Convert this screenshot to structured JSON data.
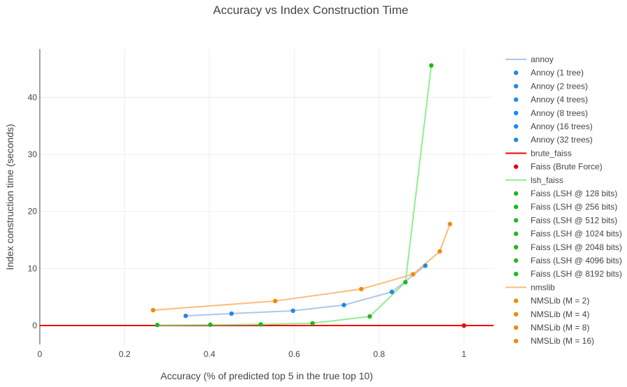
{
  "chart_data": {
    "type": "scatter",
    "title": "Accuracy vs Index Construction Time",
    "xlabel": "Accuracy (% of predicted top 5 in the true top 10)",
    "ylabel": "Index construction time (seconds)",
    "xlim": [
      0,
      1.07
    ],
    "ylim": [
      -3.3,
      48.5
    ],
    "x_ticks": [
      0,
      0.2,
      0.4,
      0.6,
      0.8,
      1
    ],
    "x_tick_labels": [
      "0",
      "0.2",
      "0.4",
      "0.6",
      "0.8",
      "1"
    ],
    "y_ticks": [
      0,
      10,
      20,
      30,
      40
    ],
    "y_tick_labels": [
      "0",
      "10",
      "20",
      "30",
      "40"
    ],
    "grid": true,
    "legend_position": "right",
    "groups": [
      {
        "line_name": "annoy",
        "line_color": "#aec7e8",
        "marker_color": "#1f88e8",
        "points": [
          {
            "name": "Annoy (1 tree)",
            "x": 0.344,
            "y": 1.7
          },
          {
            "name": "Annoy (2 trees)",
            "x": 0.452,
            "y": 2.1
          },
          {
            "name": "Annoy (4 trees)",
            "x": 0.597,
            "y": 2.6
          },
          {
            "name": "Annoy (8 trees)",
            "x": 0.717,
            "y": 3.6
          },
          {
            "name": "Annoy (16 trees)",
            "x": 0.83,
            "y": 5.9
          },
          {
            "name": "Annoy (32 trees)",
            "x": 0.909,
            "y": 10.5
          }
        ]
      },
      {
        "line_name": "brute_faiss",
        "line_color": "#ee0000",
        "marker_color": "#ee0000",
        "line_x": [
          0,
          1.07
        ],
        "line_y": [
          0,
          0
        ],
        "points": [
          {
            "name": "Faiss (Brute Force)",
            "x": 1.0,
            "y": 0.0
          }
        ]
      },
      {
        "line_name": "lsh_faiss",
        "line_color": "#90ee90",
        "marker_color": "#1fb81f",
        "points": [
          {
            "name": "Faiss (LSH @ 128 bits)",
            "x": 0.277,
            "y": 0.1
          },
          {
            "name": "Faiss (LSH @ 256 bits)",
            "x": 0.402,
            "y": 0.15
          },
          {
            "name": "Faiss (LSH @ 512 bits)",
            "x": 0.521,
            "y": 0.2
          },
          {
            "name": "Faiss (LSH @ 1024 bits)",
            "x": 0.643,
            "y": 0.4
          },
          {
            "name": "Faiss (LSH @ 2048 bits)",
            "x": 0.778,
            "y": 1.6
          },
          {
            "name": "Faiss (LSH @ 4096 bits)",
            "x": 0.862,
            "y": 7.6
          },
          {
            "name": "Faiss (LSH @ 8192 bits)",
            "x": 0.923,
            "y": 45.6
          }
        ]
      },
      {
        "line_name": "nmslib",
        "line_color": "#ffbb78",
        "marker_color": "#f08a00",
        "points": [
          {
            "name": "NMSLib (M = 2)",
            "x": 0.267,
            "y": 2.7,
            "in_legend": false
          },
          {
            "name": "NMSLib (M = 4)",
            "x": 0.555,
            "y": 4.3,
            "in_legend": false
          },
          {
            "name": "NMSLib (M = 8)",
            "x": 0.758,
            "y": 6.4,
            "in_legend": false
          },
          {
            "name": "NMSLib (M = 16)",
            "x": 0.88,
            "y": 9.0,
            "in_legend": false
          },
          {
            "name": "NMSLib (M = 2)",
            "x": 0.943,
            "y": 13.0
          },
          {
            "name": "NMSLib (M = 4)",
            "x": 0.967,
            "y": 17.8
          }
        ],
        "legend_extra": [
          "NMSLib (M = 8)",
          "NMSLib (M = 16)"
        ]
      }
    ]
  }
}
